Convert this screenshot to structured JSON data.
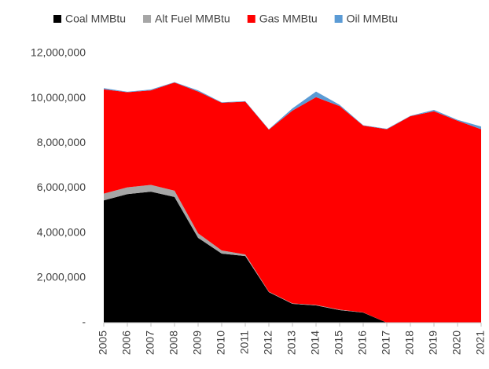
{
  "chart_data": {
    "type": "stacked_area",
    "categories": [
      "2005",
      "2006",
      "2007",
      "2008",
      "2009",
      "2010",
      "2011",
      "2012",
      "2013",
      "2014",
      "2015",
      "2016",
      "2017",
      "2018",
      "2019",
      "2020",
      "2021"
    ],
    "series": [
      {
        "name": "Coal MMBtu",
        "color": "#000000",
        "values": [
          5450000,
          5730000,
          5840000,
          5600000,
          3780000,
          3080000,
          2970000,
          1360000,
          840000,
          770000,
          560000,
          450000,
          0,
          0,
          0,
          0,
          0
        ]
      },
      {
        "name": "Alt Fuel MMBtu",
        "color": "#a6a6a6",
        "values": [
          300000,
          300000,
          300000,
          280000,
          200000,
          140000,
          70000,
          20000,
          20000,
          20000,
          20000,
          10000,
          0,
          0,
          0,
          0,
          0
        ]
      },
      {
        "name": "Gas MMBtu",
        "color": "#ff0000",
        "values": [
          4650000,
          4240000,
          4210000,
          4820000,
          6320000,
          6580000,
          6810000,
          7220000,
          8590000,
          9260000,
          9070000,
          8320000,
          8620000,
          9200000,
          9420000,
          9000000,
          8620000
        ]
      },
      {
        "name": "Oil MMBtu",
        "color": "#5b9bd5",
        "values": [
          50000,
          20000,
          40000,
          20000,
          50000,
          20000,
          20000,
          20000,
          100000,
          250000,
          60000,
          20000,
          20000,
          20000,
          60000,
          40000,
          120000
        ]
      }
    ],
    "ylim": [
      0,
      12000000
    ],
    "yticks": [
      {
        "value": 0,
        "label": "-"
      },
      {
        "value": 2000000,
        "label": "2,000,000"
      },
      {
        "value": 4000000,
        "label": "4,000,000"
      },
      {
        "value": 6000000,
        "label": "6,000,000"
      },
      {
        "value": 8000000,
        "label": "8,000,000"
      },
      {
        "value": 10000000,
        "label": "10,000,000"
      },
      {
        "value": 12000000,
        "label": "12,000,000"
      }
    ],
    "legend": "top",
    "grid": false
  }
}
